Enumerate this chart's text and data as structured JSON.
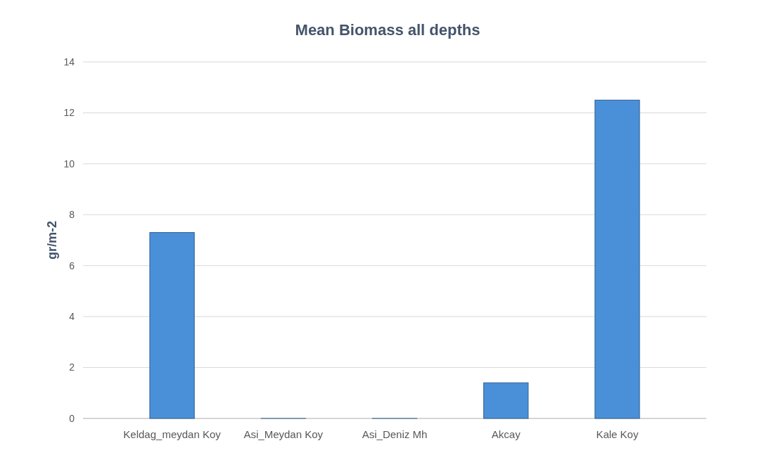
{
  "chart_data": {
    "type": "bar",
    "title": "Mean Biomass all depths",
    "ylabel": "gr/m-2",
    "categories": [
      "Keldag_meydan Koy",
      "Asi_Meydan Koy",
      "Asi_Deniz Mh",
      "Akcay",
      "Kale Koy"
    ],
    "values": [
      7.3,
      0,
      0,
      1.4,
      12.5
    ],
    "color": "#4a90d9",
    "ylim": [
      0,
      14
    ],
    "yticks": [
      0,
      2,
      4,
      6,
      8,
      10,
      12,
      14
    ],
    "grid": "y"
  }
}
